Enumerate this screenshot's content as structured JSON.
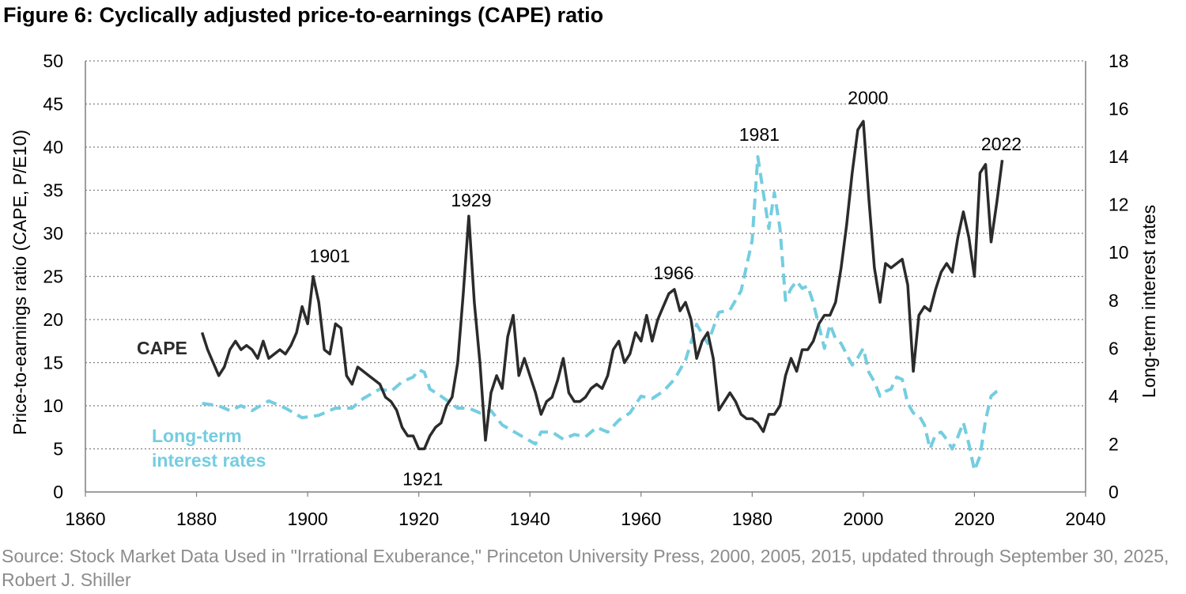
{
  "title": "Figure 6: Cyclically adjusted price-to-earnings (CAPE) ratio",
  "source": "Source: Stock Market Data Used in \"Irrational Exuberance,\" Princeton University Press, 2000, 2005, 2015, updated through September 30, 2025, Robert J. Shiller",
  "colors": {
    "cape": "#2b2b2b",
    "rates": "#74cde0",
    "grid": "#7f7f7f",
    "axis": "#7f7f7f",
    "source": "#8c8c8c"
  },
  "chart_data": {
    "type": "line",
    "xlabel": "",
    "ylabel": "Price-to-earnings ratio (CAPE, P/E10)",
    "y2label": "Long-term interest rates",
    "xlim": [
      1860,
      2040
    ],
    "ylim": [
      0,
      50
    ],
    "y2lim": [
      0,
      18
    ],
    "x_ticks": [
      1860,
      1880,
      1900,
      1920,
      1940,
      1960,
      1980,
      2000,
      2020,
      2040
    ],
    "y_ticks": [
      0,
      5,
      10,
      15,
      20,
      25,
      30,
      35,
      40,
      45,
      50
    ],
    "y2_ticks": [
      0,
      2,
      4,
      6,
      8,
      10,
      12,
      14,
      16,
      18
    ],
    "grid": "horizontal dotted",
    "series": [
      {
        "name": "CAPE",
        "axis": "left",
        "style": "solid",
        "points": [
          [
            1881,
            18.5
          ],
          [
            1882,
            16.5
          ],
          [
            1883,
            15.0
          ],
          [
            1884,
            13.5
          ],
          [
            1885,
            14.5
          ],
          [
            1886,
            16.5
          ],
          [
            1887,
            17.5
          ],
          [
            1888,
            16.5
          ],
          [
            1889,
            17.0
          ],
          [
            1890,
            16.5
          ],
          [
            1891,
            15.5
          ],
          [
            1892,
            17.5
          ],
          [
            1893,
            15.5
          ],
          [
            1894,
            16.0
          ],
          [
            1895,
            16.5
          ],
          [
            1896,
            16.0
          ],
          [
            1897,
            17.0
          ],
          [
            1898,
            18.5
          ],
          [
            1899,
            21.5
          ],
          [
            1900,
            19.5
          ],
          [
            1901,
            25.0
          ],
          [
            1902,
            22.0
          ],
          [
            1903,
            16.5
          ],
          [
            1904,
            16.0
          ],
          [
            1905,
            19.5
          ],
          [
            1906,
            19.0
          ],
          [
            1907,
            13.5
          ],
          [
            1908,
            12.5
          ],
          [
            1909,
            14.5
          ],
          [
            1910,
            14.0
          ],
          [
            1911,
            13.5
          ],
          [
            1912,
            13.0
          ],
          [
            1913,
            12.5
          ],
          [
            1914,
            11.0
          ],
          [
            1915,
            10.5
          ],
          [
            1916,
            9.5
          ],
          [
            1917,
            7.5
          ],
          [
            1918,
            6.5
          ],
          [
            1919,
            6.5
          ],
          [
            1920,
            5.0
          ],
          [
            1921,
            5.0
          ],
          [
            1922,
            6.5
          ],
          [
            1923,
            7.5
          ],
          [
            1924,
            8.0
          ],
          [
            1925,
            10.0
          ],
          [
            1926,
            11.0
          ],
          [
            1927,
            15.0
          ],
          [
            1928,
            23.0
          ],
          [
            1929,
            32.0
          ],
          [
            1930,
            22.0
          ],
          [
            1931,
            15.0
          ],
          [
            1932,
            6.0
          ],
          [
            1933,
            11.5
          ],
          [
            1934,
            13.5
          ],
          [
            1935,
            12.0
          ],
          [
            1936,
            18.0
          ],
          [
            1937,
            20.5
          ],
          [
            1938,
            13.5
          ],
          [
            1939,
            15.5
          ],
          [
            1940,
            13.5
          ],
          [
            1941,
            11.5
          ],
          [
            1942,
            9.0
          ],
          [
            1943,
            10.5
          ],
          [
            1944,
            11.0
          ],
          [
            1945,
            13.0
          ],
          [
            1946,
            15.5
          ],
          [
            1947,
            11.5
          ],
          [
            1948,
            10.5
          ],
          [
            1949,
            10.5
          ],
          [
            1950,
            11.0
          ],
          [
            1951,
            12.0
          ],
          [
            1952,
            12.5
          ],
          [
            1953,
            12.0
          ],
          [
            1954,
            13.5
          ],
          [
            1955,
            16.5
          ],
          [
            1956,
            17.5
          ],
          [
            1957,
            15.0
          ],
          [
            1958,
            16.0
          ],
          [
            1959,
            18.5
          ],
          [
            1960,
            17.5
          ],
          [
            1961,
            20.5
          ],
          [
            1962,
            17.5
          ],
          [
            1963,
            20.0
          ],
          [
            1964,
            21.5
          ],
          [
            1965,
            23.0
          ],
          [
            1966,
            23.5
          ],
          [
            1967,
            21.0
          ],
          [
            1968,
            22.0
          ],
          [
            1969,
            20.0
          ],
          [
            1970,
            15.5
          ],
          [
            1971,
            17.5
          ],
          [
            1972,
            18.5
          ],
          [
            1973,
            15.5
          ],
          [
            1974,
            9.5
          ],
          [
            1975,
            10.5
          ],
          [
            1976,
            11.5
          ],
          [
            1977,
            10.5
          ],
          [
            1978,
            9.0
          ],
          [
            1979,
            8.5
          ],
          [
            1980,
            8.5
          ],
          [
            1981,
            8.0
          ],
          [
            1982,
            7.0
          ],
          [
            1983,
            9.0
          ],
          [
            1984,
            9.0
          ],
          [
            1985,
            10.0
          ],
          [
            1986,
            13.5
          ],
          [
            1987,
            15.5
          ],
          [
            1988,
            14.0
          ],
          [
            1989,
            16.5
          ],
          [
            1990,
            16.5
          ],
          [
            1991,
            17.5
          ],
          [
            1992,
            19.5
          ],
          [
            1993,
            20.5
          ],
          [
            1994,
            20.5
          ],
          [
            1995,
            22.0
          ],
          [
            1996,
            26.0
          ],
          [
            1997,
            31.0
          ],
          [
            1998,
            37.0
          ],
          [
            1999,
            42.0
          ],
          [
            2000,
            43.0
          ],
          [
            2001,
            34.0
          ],
          [
            2002,
            26.0
          ],
          [
            2003,
            22.0
          ],
          [
            2004,
            26.5
          ],
          [
            2005,
            26.0
          ],
          [
            2006,
            26.5
          ],
          [
            2007,
            27.0
          ],
          [
            2008,
            24.0
          ],
          [
            2009,
            14.0
          ],
          [
            2010,
            20.5
          ],
          [
            2011,
            21.5
          ],
          [
            2012,
            21.0
          ],
          [
            2013,
            23.5
          ],
          [
            2014,
            25.5
          ],
          [
            2015,
            26.5
          ],
          [
            2016,
            25.5
          ],
          [
            2017,
            29.5
          ],
          [
            2018,
            32.5
          ],
          [
            2019,
            29.5
          ],
          [
            2020,
            25.0
          ],
          [
            2021,
            37.0
          ],
          [
            2022,
            38.0
          ],
          [
            2023,
            29.0
          ],
          [
            2024,
            33.5
          ],
          [
            2025,
            38.5
          ]
        ]
      },
      {
        "name": "Long-term interest rates",
        "axis": "right",
        "style": "dashed",
        "points": [
          [
            1881,
            3.7
          ],
          [
            1884,
            3.6
          ],
          [
            1886,
            3.4
          ],
          [
            1888,
            3.6
          ],
          [
            1890,
            3.4
          ],
          [
            1893,
            3.8
          ],
          [
            1896,
            3.5
          ],
          [
            1899,
            3.1
          ],
          [
            1902,
            3.2
          ],
          [
            1905,
            3.5
          ],
          [
            1908,
            3.5
          ],
          [
            1910,
            3.9
          ],
          [
            1913,
            4.3
          ],
          [
            1915,
            4.2
          ],
          [
            1917,
            4.6
          ],
          [
            1919,
            4.8
          ],
          [
            1920,
            5.1
          ],
          [
            1921,
            5.0
          ],
          [
            1922,
            4.3
          ],
          [
            1924,
            4.0
          ],
          [
            1927,
            3.5
          ],
          [
            1929,
            3.5
          ],
          [
            1931,
            3.3
          ],
          [
            1933,
            3.4
          ],
          [
            1935,
            2.8
          ],
          [
            1938,
            2.4
          ],
          [
            1941,
            2.0
          ],
          [
            1942,
            2.5
          ],
          [
            1944,
            2.5
          ],
          [
            1946,
            2.2
          ],
          [
            1948,
            2.4
          ],
          [
            1950,
            2.3
          ],
          [
            1952,
            2.7
          ],
          [
            1954,
            2.5
          ],
          [
            1956,
            3.0
          ],
          [
            1958,
            3.3
          ],
          [
            1960,
            4.0
          ],
          [
            1962,
            3.9
          ],
          [
            1964,
            4.2
          ],
          [
            1966,
            4.7
          ],
          [
            1968,
            5.5
          ],
          [
            1970,
            7.0
          ],
          [
            1972,
            6.2
          ],
          [
            1974,
            7.5
          ],
          [
            1976,
            7.6
          ],
          [
            1978,
            8.4
          ],
          [
            1980,
            10.5
          ],
          [
            1981,
            14.0
          ],
          [
            1982,
            12.5
          ],
          [
            1983,
            11.0
          ],
          [
            1984,
            12.5
          ],
          [
            1985,
            11.0
          ],
          [
            1986,
            8.0
          ],
          [
            1987,
            8.5
          ],
          [
            1988,
            8.8
          ],
          [
            1989,
            8.5
          ],
          [
            1990,
            8.6
          ],
          [
            1991,
            7.9
          ],
          [
            1993,
            6.0
          ],
          [
            1994,
            7.0
          ],
          [
            1995,
            6.4
          ],
          [
            1996,
            6.2
          ],
          [
            1998,
            5.3
          ],
          [
            1999,
            5.6
          ],
          [
            2000,
            6.0
          ],
          [
            2001,
            5.0
          ],
          [
            2002,
            4.6
          ],
          [
            2003,
            4.0
          ],
          [
            2004,
            4.2
          ],
          [
            2005,
            4.3
          ],
          [
            2006,
            4.8
          ],
          [
            2007,
            4.7
          ],
          [
            2008,
            3.7
          ],
          [
            2009,
            3.3
          ],
          [
            2010,
            3.2
          ],
          [
            2011,
            2.8
          ],
          [
            2012,
            1.8
          ],
          [
            2013,
            2.4
          ],
          [
            2014,
            2.5
          ],
          [
            2015,
            2.2
          ],
          [
            2016,
            1.8
          ],
          [
            2017,
            2.3
          ],
          [
            2018,
            2.9
          ],
          [
            2019,
            2.0
          ],
          [
            2020,
            0.9
          ],
          [
            2021,
            1.5
          ],
          [
            2022,
            3.0
          ],
          [
            2023,
            4.0
          ],
          [
            2024,
            4.2
          ],
          [
            2025,
            4.3
          ]
        ]
      }
    ],
    "annotations": [
      {
        "text": "1901",
        "x": 1901,
        "y": 25.0
      },
      {
        "text": "1921",
        "x": 1921,
        "y": 5.0
      },
      {
        "text": "1929",
        "x": 1929,
        "y": 32.0
      },
      {
        "text": "1966",
        "x": 1966,
        "y": 23.5
      },
      {
        "text": "1981",
        "x": 1981,
        "y": 14.0,
        "axis": "right"
      },
      {
        "text": "2000",
        "x": 2000,
        "y": 43.0
      },
      {
        "text": "2022",
        "x": 2022,
        "y": 38.0
      }
    ],
    "series_labels": [
      {
        "text": "CAPE",
        "series": "CAPE"
      },
      {
        "text": "Long-term",
        "series": "Long-term interest rates"
      },
      {
        "text": "interest rates",
        "series": "Long-term interest rates"
      }
    ]
  }
}
